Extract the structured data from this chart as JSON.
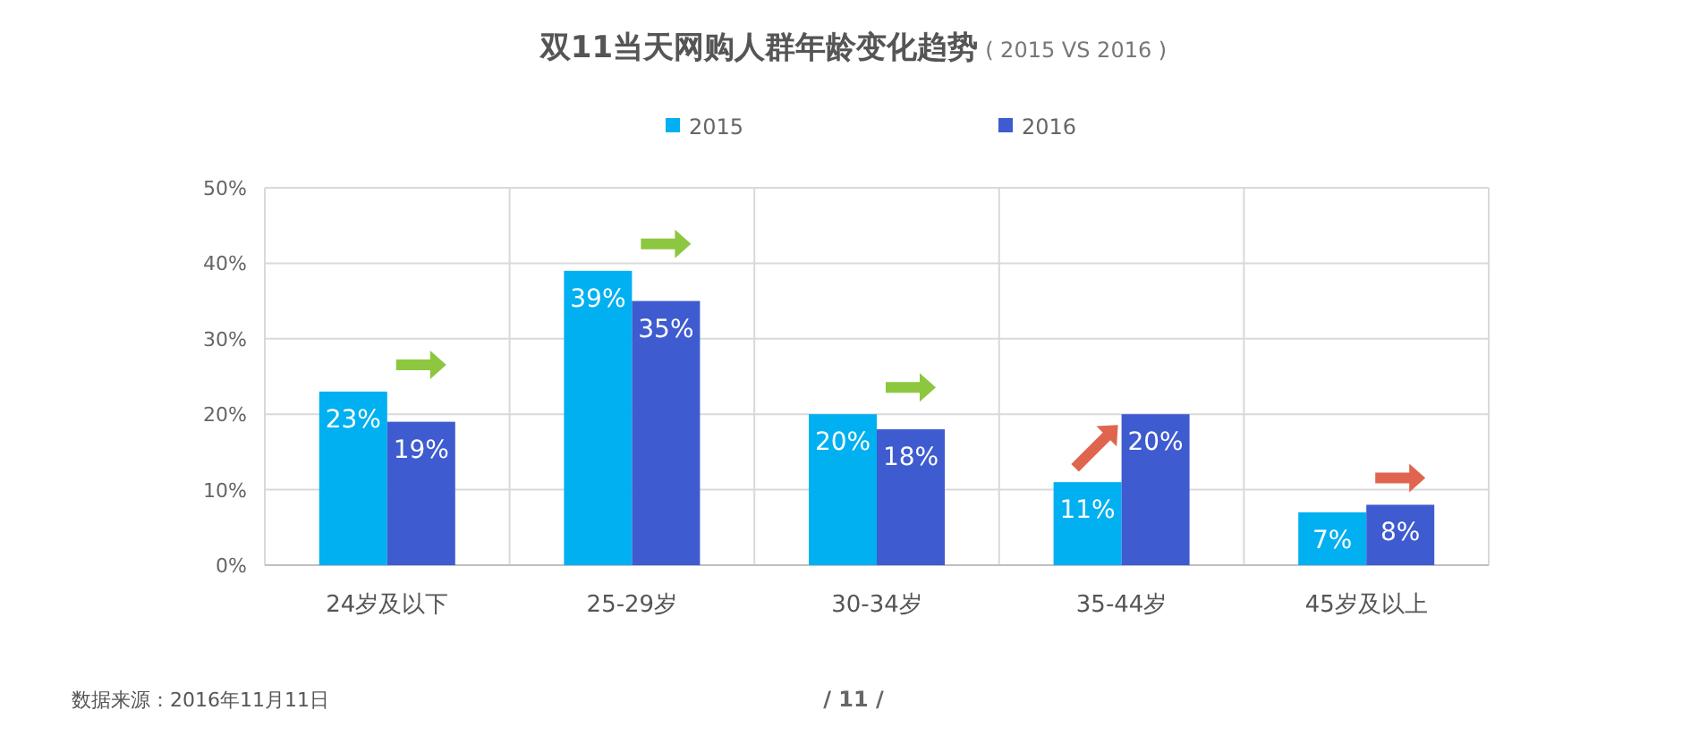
{
  "chart_data": {
    "type": "bar",
    "title": "双11当天网购人群年龄变化趋势",
    "subtitle": "( 2015 VS 2016 )",
    "categories": [
      "24岁及以下",
      "25-29岁",
      "30-34岁",
      "35-44岁",
      "45岁及以上"
    ],
    "series": [
      {
        "name": "2015",
        "color": "#00b0f0",
        "values": [
          23,
          39,
          20,
          11,
          7
        ],
        "value_labels": [
          "23%",
          "39%",
          "20%",
          "11%",
          "7%"
        ]
      },
      {
        "name": "2016",
        "color": "#3f5bd0",
        "values": [
          19,
          35,
          18,
          20,
          8
        ],
        "value_labels": [
          "19%",
          "35%",
          "18%",
          "20%",
          "8%"
        ]
      }
    ],
    "ylim": [
      0,
      50
    ],
    "yticks": [
      {
        "value": 0,
        "label": "0%"
      },
      {
        "value": 10,
        "label": "10%"
      },
      {
        "value": 20,
        "label": "20%"
      },
      {
        "value": 30,
        "label": "30%"
      },
      {
        "value": 40,
        "label": "40%"
      },
      {
        "value": 50,
        "label": "50%"
      }
    ],
    "grid": true,
    "legend": "top",
    "annotations": [
      "数据来源：2016年11月11日",
      "/ 11 /"
    ]
  }
}
